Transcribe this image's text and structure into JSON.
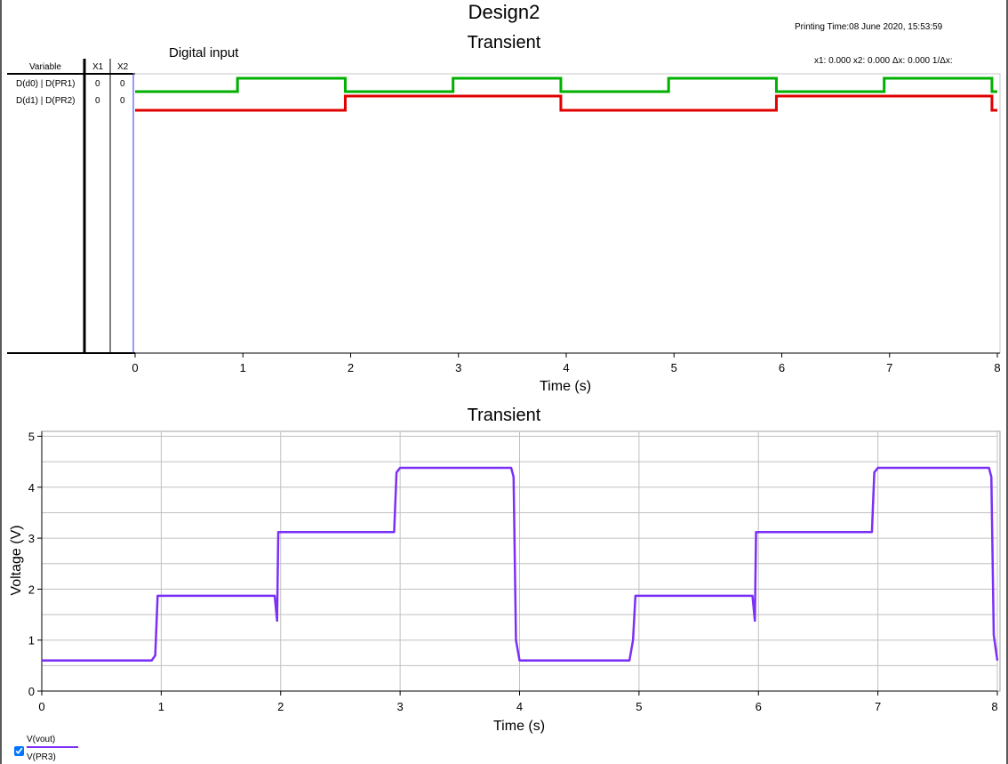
{
  "header": {
    "design_title": "Design2",
    "printing_time": "Printing Time:08 June 2020, 15:53:59",
    "cursor_readout": "x1:  0.000  x2:  0.000  Δx:  0.000  1/Δx:"
  },
  "digital_panel": {
    "title": "Transient",
    "note": "Digital input",
    "table": {
      "headers": [
        "Variable",
        "X1",
        "X2"
      ],
      "rows": [
        {
          "name": "D(d0) | D(PR1)",
          "x1": "0",
          "x2": "0"
        },
        {
          "name": "D(d1) | D(PR2)",
          "x1": "0",
          "x2": "0"
        }
      ]
    },
    "xlabel": "Time (s)"
  },
  "analog_panel": {
    "title": "Transient",
    "xlabel": "Time (s)",
    "ylabel": "Voltage (V)"
  },
  "legend": {
    "series_name": "V(vout)",
    "probe_name": "V(PR3)",
    "checked": true
  },
  "colors": {
    "d0": "#00b000",
    "d1": "#e00000",
    "vout": "#7b2ff7",
    "grid": "#c0c0c0"
  },
  "chart_data": [
    {
      "type": "line",
      "title": "Transient",
      "xlabel": "Time (s)",
      "ylabel": "",
      "xlim": [
        0,
        8
      ],
      "x_ticks": [
        0,
        1,
        2,
        3,
        4,
        5,
        6,
        7,
        8
      ],
      "series": [
        {
          "name": "D(d0) | D(PR1)",
          "color": "#00b000",
          "x": [
            0,
            0.95,
            0.95,
            1.95,
            1.95,
            2.95,
            2.95,
            3.95,
            3.95,
            4.95,
            4.95,
            5.95,
            5.95,
            6.95,
            6.95,
            7.95,
            7.95,
            8.0
          ],
          "y": [
            0,
            0,
            1,
            1,
            0,
            0,
            1,
            1,
            0,
            0,
            1,
            1,
            0,
            0,
            1,
            1,
            0,
            0
          ]
        },
        {
          "name": "D(d1) | D(PR2)",
          "color": "#e00000",
          "x": [
            0,
            1.95,
            1.95,
            3.95,
            3.95,
            5.95,
            5.95,
            7.95,
            7.95,
            8.0
          ],
          "y": [
            0,
            0,
            1,
            1,
            0,
            0,
            1,
            1,
            0,
            0
          ]
        }
      ]
    },
    {
      "type": "line",
      "title": "Transient",
      "xlabel": "Time (s)",
      "ylabel": "Voltage (V)",
      "xlim": [
        0,
        8
      ],
      "ylim": [
        0,
        5
      ],
      "x_ticks": [
        0,
        1,
        2,
        3,
        4,
        5,
        6,
        7,
        8
      ],
      "y_ticks": [
        0,
        1,
        2,
        3,
        4,
        5
      ],
      "grid": true,
      "series": [
        {
          "name": "V(vout)",
          "color": "#7b2ff7",
          "x": [
            0,
            0.92,
            0.95,
            0.97,
            1.95,
            1.97,
            1.98,
            2.95,
            2.97,
            3.0,
            3.93,
            3.95,
            3.97,
            4.0,
            4.92,
            4.95,
            4.97,
            5.95,
            5.97,
            5.98,
            6.95,
            6.97,
            7.0,
            7.93,
            7.95,
            7.97,
            8.0
          ],
          "y": [
            0.6,
            0.6,
            0.7,
            1.87,
            1.87,
            1.38,
            3.12,
            3.12,
            4.29,
            4.38,
            4.38,
            4.2,
            1.0,
            0.6,
            0.6,
            1.0,
            1.87,
            1.87,
            1.38,
            3.12,
            3.12,
            4.29,
            4.38,
            4.38,
            4.2,
            1.1,
            0.6
          ]
        }
      ]
    }
  ]
}
